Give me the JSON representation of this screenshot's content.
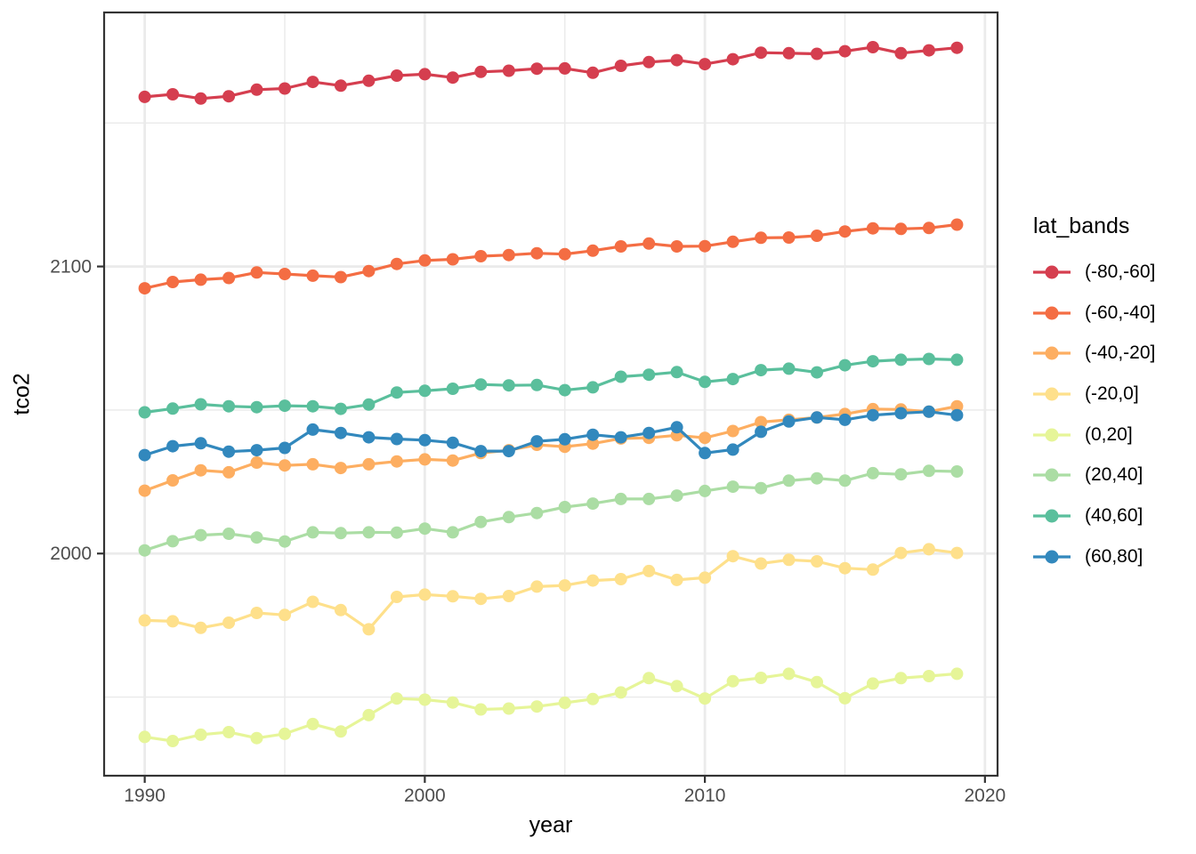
{
  "figure": {
    "background": "#ffffff",
    "panel": {
      "background": "#ffffff",
      "border_color": "#333333",
      "grid_major_color": "#ebebeb",
      "grid_minor_color": "#ebebeb",
      "tick_color": "#333333",
      "tick_label_color": "#4d4d4d"
    }
  },
  "legend": {
    "title": "lat_bands",
    "position": "right"
  },
  "chart_data": {
    "type": "line",
    "title": "",
    "xlabel": "year",
    "ylabel": "tco2",
    "x": [
      1990,
      1991,
      1992,
      1993,
      1994,
      1995,
      1996,
      1997,
      1998,
      1999,
      2000,
      2001,
      2002,
      2003,
      2004,
      2005,
      2006,
      2007,
      2008,
      2009,
      2010,
      2011,
      2012,
      2013,
      2014,
      2015,
      2016,
      2017,
      2018,
      2019
    ],
    "xlim": [
      1988.55,
      2020.45
    ],
    "ylim": [
      1922.6,
      2188.5
    ],
    "x_major_ticks": [
      1990,
      2000,
      2010,
      2020
    ],
    "x_minor_ticks": [
      1995,
      2005,
      2015
    ],
    "y_major_ticks": [
      2000,
      2100
    ],
    "y_minor_ticks": [
      1950,
      2050,
      2150
    ],
    "grid": true,
    "marker": "circle",
    "legend_position": "right",
    "series": [
      {
        "name": "(-80,-60]",
        "color": "#d53e4f",
        "values": [
          2159.1,
          2160.0,
          2158.5,
          2159.3,
          2161.6,
          2162.0,
          2164.3,
          2163.0,
          2164.7,
          2166.5,
          2167.0,
          2165.8,
          2167.8,
          2168.2,
          2168.9,
          2169.0,
          2167.5,
          2169.9,
          2171.2,
          2171.9,
          2170.5,
          2172.2,
          2174.5,
          2174.3,
          2174.1,
          2175.0,
          2176.4,
          2174.3,
          2175.3,
          2176.2
        ]
      },
      {
        "name": "(-60,-40]",
        "color": "#f46d43",
        "values": [
          2092.4,
          2094.6,
          2095.4,
          2096.0,
          2097.9,
          2097.4,
          2096.8,
          2096.3,
          2098.4,
          2100.9,
          2102.1,
          2102.5,
          2103.6,
          2104.0,
          2104.6,
          2104.3,
          2105.5,
          2107.0,
          2108.0,
          2107.0,
          2107.1,
          2108.6,
          2110.0,
          2110.1,
          2110.7,
          2112.2,
          2113.3,
          2113.1,
          2113.4,
          2114.6
        ]
      },
      {
        "name": "(-40,-20]",
        "color": "#fdae61",
        "values": [
          2021.9,
          2025.5,
          2029.0,
          2028.3,
          2031.7,
          2030.7,
          2031.1,
          2029.8,
          2031.1,
          2032.1,
          2032.8,
          2032.4,
          2035.0,
          2036.0,
          2037.9,
          2037.2,
          2038.3,
          2040.1,
          2040.3,
          2041.2,
          2040.3,
          2042.7,
          2045.8,
          2046.6,
          2047.4,
          2048.6,
          2050.3,
          2050.2,
          2049.4,
          2051.3
        ]
      },
      {
        "name": "(-20,0]",
        "color": "#fee08b",
        "values": [
          1976.7,
          1976.4,
          1974.1,
          1975.9,
          1979.3,
          1978.6,
          1983.2,
          1980.3,
          1973.6,
          1984.9,
          1985.7,
          1985.1,
          1984.2,
          1985.2,
          1988.5,
          1988.9,
          1990.6,
          1991.1,
          1993.9,
          1990.8,
          1991.6,
          1999.1,
          1996.5,
          1997.8,
          1997.3,
          1994.9,
          1994.4,
          2000.2,
          2001.5,
          2000.2
        ]
      },
      {
        "name": "(0,20]",
        "color": "#e6f598",
        "values": [
          1936.1,
          1934.7,
          1936.9,
          1937.8,
          1935.7,
          1937.2,
          1940.6,
          1938.0,
          1943.7,
          1949.5,
          1949.1,
          1948.1,
          1945.7,
          1946.0,
          1946.7,
          1948.0,
          1949.3,
          1951.6,
          1956.6,
          1953.8,
          1949.5,
          1955.5,
          1956.7,
          1958.1,
          1955.2,
          1949.6,
          1954.7,
          1956.6,
          1957.3,
          1958.1
        ]
      },
      {
        "name": "(20,40]",
        "color": "#abdda4",
        "values": [
          2001.1,
          2004.3,
          2006.4,
          2006.9,
          2005.6,
          2004.2,
          2007.4,
          2007.1,
          2007.4,
          2007.3,
          2008.7,
          2007.4,
          2011.0,
          2012.7,
          2014.1,
          2016.2,
          2017.4,
          2019.0,
          2019.0,
          2020.2,
          2021.8,
          2023.3,
          2022.8,
          2025.4,
          2026.2,
          2025.4,
          2028.0,
          2027.6,
          2028.8,
          2028.6
        ]
      },
      {
        "name": "(40,60]",
        "color": "#5abf9c",
        "values": [
          2049.2,
          2050.5,
          2052.0,
          2051.3,
          2051.0,
          2051.5,
          2051.3,
          2050.4,
          2051.9,
          2056.1,
          2056.7,
          2057.4,
          2058.9,
          2058.6,
          2058.7,
          2056.9,
          2057.9,
          2061.6,
          2062.3,
          2063.2,
          2059.8,
          2060.8,
          2063.9,
          2064.4,
          2063.1,
          2065.6,
          2067.0,
          2067.5,
          2067.8,
          2067.5
        ]
      },
      {
        "name": "(60,80]",
        "color": "#3288bd",
        "values": [
          2034.3,
          2037.4,
          2038.4,
          2035.5,
          2036.0,
          2036.8,
          2043.2,
          2042.0,
          2040.5,
          2039.9,
          2039.5,
          2038.6,
          2035.7,
          2035.7,
          2039.1,
          2039.8,
          2041.4,
          2040.5,
          2042.0,
          2044.0,
          2035.0,
          2036.2,
          2042.4,
          2046.0,
          2047.4,
          2046.6,
          2048.2,
          2048.9,
          2049.4,
          2048.2
        ]
      }
    ]
  }
}
